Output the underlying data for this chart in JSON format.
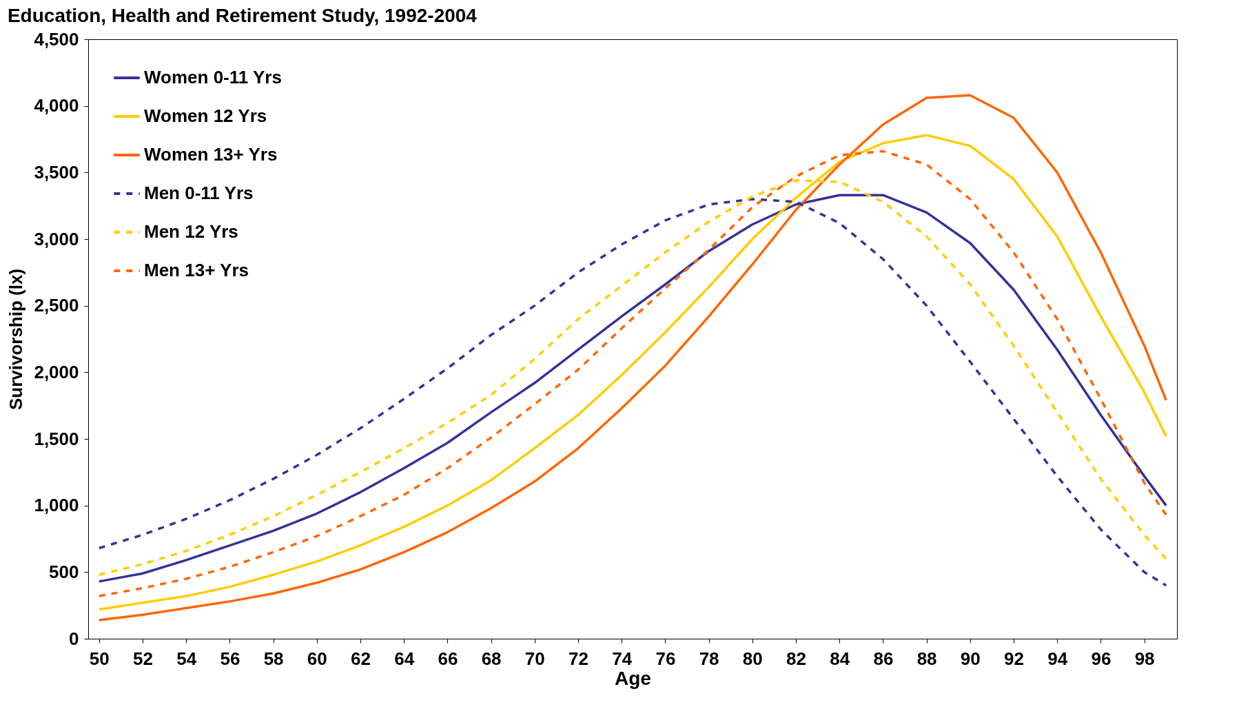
{
  "chart_data": {
    "type": "line",
    "title": "Education, Health and Retirement Study, 1992-2004",
    "xlabel": "Age",
    "ylabel": "Survivorship (lx)",
    "x": [
      50,
      52,
      54,
      56,
      58,
      60,
      62,
      64,
      66,
      68,
      70,
      72,
      74,
      76,
      78,
      80,
      82,
      84,
      86,
      88,
      90,
      92,
      94,
      96,
      98,
      99
    ],
    "xlim": [
      49.5,
      99.5
    ],
    "xticks": [
      50,
      52,
      54,
      56,
      58,
      60,
      62,
      64,
      66,
      68,
      70,
      72,
      74,
      76,
      78,
      80,
      82,
      84,
      86,
      88,
      90,
      92,
      94,
      96,
      98
    ],
    "ylim": [
      0,
      4500
    ],
    "yticks": [
      0,
      500,
      {
        "value": 1000,
        "label": "1,000"
      },
      {
        "value": 1500,
        "label": "1,500"
      },
      {
        "value": 2000,
        "label": "2,000"
      },
      {
        "value": 2500,
        "label": "2,500"
      },
      {
        "value": 3000,
        "label": "3,000"
      },
      {
        "value": 3500,
        "label": "3,500"
      },
      {
        "value": 4000,
        "label": "4,000"
      },
      {
        "value": 4500,
        "label": "4,500"
      }
    ],
    "grid": false,
    "legend": "top left",
    "marker": "none",
    "series": [
      {
        "name": "Women 0-11 Yrs",
        "color": "#333399",
        "line_style": "solid",
        "values": [
          430,
          490,
          590,
          700,
          810,
          940,
          1100,
          1280,
          1470,
          1700,
          1920,
          2170,
          2420,
          2660,
          2910,
          3110,
          3260,
          3330,
          3330,
          3200,
          2970,
          2620,
          2170,
          1680,
          1220,
          1000
        ]
      },
      {
        "name": "Women 12 Yrs",
        "color": "#ffcc00",
        "line_style": "solid",
        "values": [
          220,
          270,
          320,
          390,
          480,
          580,
          700,
          840,
          1000,
          1190,
          1430,
          1680,
          1980,
          2300,
          2640,
          3000,
          3310,
          3580,
          3720,
          3780,
          3700,
          3450,
          3020,
          2420,
          1850,
          1520
        ]
      },
      {
        "name": "Women 13+ Yrs",
        "color": "#ff6600",
        "line_style": "solid",
        "values": [
          140,
          180,
          230,
          280,
          340,
          420,
          520,
          650,
          800,
          980,
          1180,
          1430,
          1730,
          2050,
          2420,
          2810,
          3220,
          3560,
          3860,
          4060,
          4080,
          3910,
          3500,
          2900,
          2200,
          1790
        ]
      },
      {
        "name": "Men 0-11 Yrs",
        "color": "#333399",
        "line_style": "dashed",
        "values": [
          680,
          780,
          900,
          1040,
          1200,
          1380,
          1580,
          1800,
          2030,
          2280,
          2500,
          2750,
          2960,
          3140,
          3260,
          3300,
          3280,
          3120,
          2850,
          2500,
          2080,
          1650,
          1220,
          820,
          500,
          400
        ]
      },
      {
        "name": "Men 12 Yrs",
        "color": "#ffcc00",
        "line_style": "dashed",
        "values": [
          480,
          560,
          660,
          780,
          920,
          1080,
          1250,
          1430,
          1620,
          1830,
          2100,
          2400,
          2650,
          2900,
          3130,
          3320,
          3440,
          3430,
          3280,
          3020,
          2660,
          2200,
          1700,
          1200,
          780,
          600
        ]
      },
      {
        "name": "Men 13+ Yrs",
        "color": "#ff6600",
        "line_style": "dashed",
        "values": [
          320,
          380,
          450,
          540,
          650,
          770,
          920,
          1080,
          1280,
          1510,
          1760,
          2020,
          2330,
          2630,
          2920,
          3240,
          3470,
          3630,
          3660,
          3560,
          3300,
          2900,
          2400,
          1800,
          1170,
          930
        ]
      }
    ]
  }
}
